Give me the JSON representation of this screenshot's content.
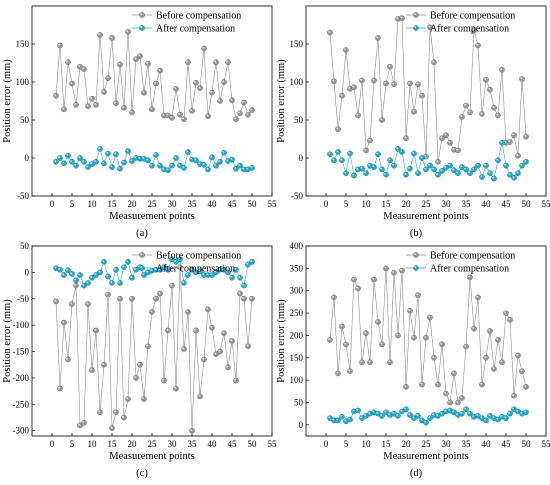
{
  "styles": {
    "before_color": "#9a9a9a",
    "after_color": "#29a9cf",
    "line_color": "#8c8c8c"
  },
  "chart_data": [
    {
      "id": "a",
      "type": "line",
      "caption": "(a)",
      "xlabel": "Measurement points",
      "ylabel": "Position error  (mm)",
      "xlim": [
        -5,
        55
      ],
      "ylim": [
        -50,
        200
      ],
      "xticks": [
        0,
        5,
        10,
        15,
        20,
        25,
        30,
        35,
        40,
        45,
        50,
        55
      ],
      "yticks": [
        -50,
        0,
        50,
        100,
        150
      ],
      "legend_position": "top-right",
      "series": [
        {
          "name": "Before compensation",
          "x": [
            1,
            2,
            3,
            4,
            5,
            6,
            7,
            8,
            9,
            10,
            11,
            12,
            13,
            14,
            15,
            16,
            17,
            18,
            19,
            20,
            21,
            22,
            23,
            24,
            25,
            26,
            27,
            28,
            29,
            30,
            31,
            32,
            33,
            34,
            35,
            36,
            37,
            38,
            39,
            40,
            41,
            42,
            43,
            44,
            45,
            46,
            47,
            48,
            49,
            50
          ],
          "values": [
            82,
            148,
            64,
            126,
            98,
            70,
            120,
            117,
            68,
            78,
            70,
            162,
            87,
            105,
            158,
            72,
            123,
            66,
            166,
            60,
            130,
            134,
            86,
            124,
            64,
            98,
            115,
            56,
            56,
            53,
            91,
            57,
            51,
            126,
            62,
            99,
            92,
            144,
            55,
            86,
            126,
            75,
            100,
            126,
            76,
            51,
            59,
            73,
            57,
            63
          ]
        },
        {
          "name": "After compensation",
          "x": [
            1,
            2,
            3,
            4,
            5,
            6,
            7,
            8,
            9,
            10,
            11,
            12,
            13,
            14,
            15,
            16,
            17,
            18,
            19,
            20,
            21,
            22,
            23,
            24,
            25,
            26,
            27,
            28,
            29,
            30,
            31,
            32,
            33,
            34,
            35,
            36,
            37,
            38,
            39,
            40,
            41,
            42,
            43,
            44,
            45,
            46,
            47,
            48,
            49,
            50
          ],
          "values": [
            -5,
            0,
            -7,
            3,
            -5,
            -10,
            0,
            -5,
            -12,
            -8,
            -5,
            12,
            -7,
            6,
            -12,
            5,
            -14,
            -6,
            9,
            -4,
            0,
            -1,
            -1,
            -3,
            -10,
            4,
            -10,
            -15,
            -16,
            -10,
            0,
            -10,
            -13,
            8,
            -2,
            -3,
            -8,
            -9,
            -15,
            1,
            -10,
            -5,
            7,
            -4,
            -2,
            -14,
            -10,
            -15,
            -15,
            -13
          ]
        }
      ]
    },
    {
      "id": "b",
      "type": "line",
      "caption": "(b)",
      "xlabel": "Measurement points",
      "ylabel": "Position error  (mm)",
      "xlim": [
        -5,
        55
      ],
      "ylim": [
        -50,
        200
      ],
      "xticks": [
        0,
        5,
        10,
        15,
        20,
        25,
        30,
        35,
        40,
        45,
        50,
        55
      ],
      "yticks": [
        -50,
        0,
        50,
        100,
        150
      ],
      "legend_position": "top-right",
      "series": [
        {
          "name": "Before compensation",
          "x": [
            1,
            2,
            3,
            4,
            5,
            6,
            7,
            8,
            9,
            10,
            11,
            12,
            13,
            14,
            15,
            16,
            17,
            18,
            19,
            20,
            21,
            22,
            23,
            24,
            25,
            26,
            27,
            28,
            29,
            30,
            31,
            32,
            33,
            34,
            35,
            36,
            37,
            38,
            39,
            40,
            41,
            42,
            43,
            44,
            45,
            46,
            47,
            48,
            49,
            50
          ],
          "values": [
            165,
            101,
            38,
            82,
            142,
            91,
            93,
            56,
            102,
            10,
            23,
            102,
            158,
            50,
            98,
            120,
            97,
            183,
            184,
            26,
            98,
            61,
            97,
            82,
            2,
            172,
            126,
            -5,
            26,
            30,
            20,
            11,
            10,
            54,
            69,
            60,
            168,
            148,
            58,
            103,
            90,
            66,
            56,
            116,
            20,
            21,
            30,
            3,
            104,
            28
          ]
        },
        {
          "name": "After compensation",
          "x": [
            1,
            2,
            3,
            4,
            5,
            6,
            7,
            8,
            9,
            10,
            11,
            12,
            13,
            14,
            15,
            16,
            17,
            18,
            19,
            20,
            21,
            22,
            23,
            24,
            25,
            26,
            27,
            28,
            29,
            30,
            31,
            32,
            33,
            34,
            35,
            36,
            37,
            38,
            39,
            40,
            41,
            42,
            43,
            44,
            45,
            46,
            47,
            48,
            49,
            50
          ],
          "values": [
            5,
            -3,
            8,
            -3,
            -20,
            6,
            -23,
            -15,
            -14,
            -20,
            -10,
            -12,
            5,
            -15,
            -22,
            -3,
            -10,
            12,
            8,
            -22,
            -14,
            6,
            -20,
            0,
            -15,
            -10,
            -15,
            -22,
            -17,
            -13,
            -10,
            -16,
            -20,
            -12,
            -15,
            -20,
            -15,
            -10,
            -25,
            -10,
            -20,
            -27,
            -3,
            20,
            -10,
            -22,
            -26,
            -20,
            -10,
            -5
          ]
        }
      ]
    },
    {
      "id": "c",
      "type": "line",
      "caption": "(c)",
      "xlabel": "Measurement points",
      "ylabel": "Position error  (mm)",
      "xlim": [
        -5,
        55
      ],
      "ylim": [
        -310,
        50
      ],
      "xticks": [
        0,
        5,
        10,
        15,
        20,
        25,
        30,
        35,
        40,
        45,
        50,
        55
      ],
      "yticks": [
        -300,
        -250,
        -200,
        -150,
        -100,
        -50,
        0,
        50
      ],
      "legend_position": "top-right",
      "series": [
        {
          "name": "Before compensation",
          "x": [
            1,
            2,
            3,
            4,
            5,
            6,
            7,
            8,
            9,
            10,
            11,
            12,
            13,
            14,
            15,
            16,
            17,
            18,
            19,
            20,
            21,
            22,
            23,
            24,
            25,
            26,
            27,
            28,
            29,
            30,
            31,
            32,
            33,
            34,
            35,
            36,
            37,
            38,
            39,
            40,
            41,
            42,
            43,
            44,
            45,
            46,
            47,
            48,
            49,
            50
          ],
          "values": [
            -55,
            -220,
            -95,
            -165,
            -60,
            -25,
            -290,
            -285,
            -60,
            -185,
            -110,
            -265,
            -175,
            -42,
            -295,
            -265,
            -50,
            -275,
            -240,
            -50,
            -200,
            -175,
            -240,
            -140,
            -75,
            -50,
            -40,
            -205,
            -110,
            -25,
            -220,
            10,
            -145,
            -75,
            -300,
            -110,
            -235,
            -165,
            -70,
            -105,
            -155,
            -150,
            -115,
            -180,
            -130,
            -205,
            -40,
            -50,
            -140,
            -50
          ]
        },
        {
          "name": "After compensation",
          "x": [
            1,
            2,
            3,
            4,
            5,
            6,
            7,
            8,
            9,
            10,
            11,
            12,
            13,
            14,
            15,
            16,
            17,
            18,
            19,
            20,
            21,
            22,
            23,
            24,
            25,
            26,
            27,
            28,
            29,
            30,
            31,
            32,
            33,
            34,
            35,
            36,
            37,
            38,
            39,
            40,
            41,
            42,
            43,
            44,
            45,
            46,
            47,
            48,
            49,
            50
          ],
          "values": [
            8,
            5,
            -5,
            4,
            -3,
            -15,
            -5,
            -25,
            -20,
            -10,
            -5,
            0,
            20,
            -8,
            -20,
            5,
            -20,
            10,
            20,
            -10,
            5,
            10,
            -5,
            0,
            3,
            5,
            5,
            10,
            5,
            25,
            20,
            25,
            -20,
            -5,
            5,
            0,
            2,
            -5,
            -5,
            -5,
            0,
            5,
            5,
            0,
            -10,
            5,
            -10,
            -25,
            15,
            20
          ]
        }
      ]
    },
    {
      "id": "d",
      "type": "line",
      "caption": "(d)",
      "xlabel": "Measurement points",
      "ylabel": "Position error  (mm)",
      "xlim": [
        -5,
        55
      ],
      "ylim": [
        -25,
        400
      ],
      "xticks": [
        0,
        5,
        10,
        15,
        20,
        25,
        30,
        35,
        40,
        45,
        50,
        55
      ],
      "yticks": [
        0,
        50,
        100,
        150,
        200,
        250,
        300,
        350,
        400
      ],
      "legend_position": "top-right",
      "series": [
        {
          "name": "Before compensation",
          "x": [
            1,
            2,
            3,
            4,
            5,
            6,
            7,
            8,
            9,
            10,
            11,
            12,
            13,
            14,
            15,
            16,
            17,
            18,
            19,
            20,
            21,
            22,
            23,
            24,
            25,
            26,
            27,
            28,
            29,
            30,
            31,
            32,
            33,
            34,
            35,
            36,
            37,
            38,
            39,
            40,
            41,
            42,
            43,
            44,
            45,
            46,
            47,
            48,
            49,
            50
          ],
          "values": [
            190,
            285,
            115,
            220,
            180,
            120,
            325,
            305,
            140,
            205,
            140,
            325,
            230,
            180,
            350,
            140,
            340,
            200,
            345,
            85,
            255,
            195,
            290,
            90,
            195,
            240,
            150,
            90,
            180,
            70,
            50,
            115,
            50,
            60,
            175,
            330,
            215,
            285,
            90,
            150,
            210,
            125,
            190,
            140,
            250,
            235,
            65,
            155,
            120,
            85
          ]
        },
        {
          "name": "After compensation",
          "x": [
            1,
            2,
            3,
            4,
            5,
            6,
            7,
            8,
            9,
            10,
            11,
            12,
            13,
            14,
            15,
            16,
            17,
            18,
            19,
            20,
            21,
            22,
            23,
            24,
            25,
            26,
            27,
            28,
            29,
            30,
            31,
            32,
            33,
            34,
            35,
            36,
            37,
            38,
            39,
            40,
            41,
            42,
            43,
            44,
            45,
            46,
            47,
            48,
            49,
            50
          ],
          "values": [
            15,
            10,
            10,
            18,
            8,
            12,
            30,
            32,
            15,
            20,
            25,
            28,
            25,
            20,
            28,
            22,
            25,
            20,
            30,
            35,
            22,
            15,
            20,
            10,
            5,
            15,
            22,
            20,
            25,
            30,
            32,
            28,
            22,
            25,
            35,
            25,
            18,
            20,
            15,
            10,
            20,
            15,
            12,
            18,
            15,
            25,
            35,
            30,
            25,
            28
          ]
        }
      ]
    }
  ]
}
